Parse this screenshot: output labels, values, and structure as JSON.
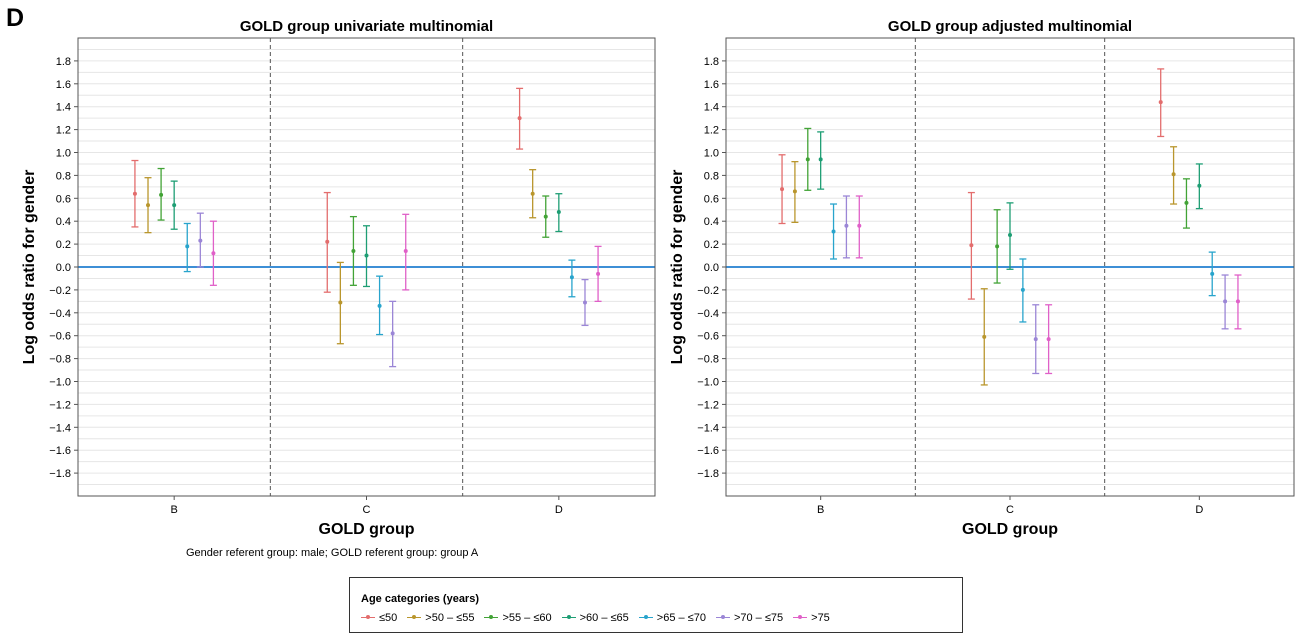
{
  "panel_letter": "D",
  "footnote": "Gender referent group: male; GOLD referent group: group A",
  "legend": {
    "title": "Age categories (years)",
    "items": [
      {
        "label": "≤50",
        "color": "#e36d6d"
      },
      {
        "label": ">50 – ≤55",
        "color": "#b9962d"
      },
      {
        "label": ">55 – ≤60",
        "color": "#42a336"
      },
      {
        "label": ">60 – ≤65",
        "color": "#1e9e74"
      },
      {
        "label": ">65 – ≤70",
        "color": "#28a4cc"
      },
      {
        "label": ">70 – ≤75",
        "color": "#9b86d6"
      },
      {
        "label": ">75",
        "color": "#e060c8"
      }
    ]
  },
  "chart_data": [
    {
      "type": "errorbar",
      "title": "GOLD group univariate multinomial",
      "xlabel": "GOLD group",
      "ylabel": "Log odds ratio for gender",
      "categories": [
        "B",
        "C",
        "D"
      ],
      "ylim": [
        -2.0,
        2.0
      ],
      "yticks": [
        "1.8",
        "1.6",
        "1.4",
        "1.2",
        "1.0",
        "0.8",
        "0.6",
        "0.4",
        "0.2",
        "0.0",
        "−0.2",
        "−0.4",
        "−0.6",
        "−0.8",
        "−1.0",
        "−1.2",
        "−1.4",
        "−1.6",
        "−1.8"
      ],
      "reference_line": 0,
      "grid": true,
      "series": [
        {
          "name": "≤50",
          "points": [
            {
              "est": 0.64,
              "lo": 0.35,
              "hi": 0.93
            },
            {
              "est": 0.22,
              "lo": -0.22,
              "hi": 0.65
            },
            {
              "est": 1.3,
              "lo": 1.03,
              "hi": 1.56
            }
          ]
        },
        {
          "name": ">50 – ≤55",
          "points": [
            {
              "est": 0.54,
              "lo": 0.3,
              "hi": 0.78
            },
            {
              "est": -0.31,
              "lo": -0.67,
              "hi": 0.04
            },
            {
              "est": 0.64,
              "lo": 0.43,
              "hi": 0.85
            }
          ]
        },
        {
          "name": ">55 – ≤60",
          "points": [
            {
              "est": 0.63,
              "lo": 0.41,
              "hi": 0.86
            },
            {
              "est": 0.14,
              "lo": -0.16,
              "hi": 0.44
            },
            {
              "est": 0.44,
              "lo": 0.26,
              "hi": 0.62
            }
          ]
        },
        {
          "name": ">60 – ≤65",
          "points": [
            {
              "est": 0.54,
              "lo": 0.33,
              "hi": 0.75
            },
            {
              "est": 0.1,
              "lo": -0.17,
              "hi": 0.36
            },
            {
              "est": 0.48,
              "lo": 0.31,
              "hi": 0.64
            }
          ]
        },
        {
          "name": ">65 – ≤70",
          "points": [
            {
              "est": 0.18,
              "lo": -0.04,
              "hi": 0.38
            },
            {
              "est": -0.34,
              "lo": -0.59,
              "hi": -0.08
            },
            {
              "est": -0.09,
              "lo": -0.26,
              "hi": 0.06
            }
          ]
        },
        {
          "name": ">70 – ≤75",
          "points": [
            {
              "est": 0.23,
              "lo": 0.0,
              "hi": 0.47
            },
            {
              "est": -0.58,
              "lo": -0.87,
              "hi": -0.3
            },
            {
              "est": -0.31,
              "lo": -0.51,
              "hi": -0.11
            }
          ]
        },
        {
          "name": ">75",
          "points": [
            {
              "est": 0.12,
              "lo": -0.16,
              "hi": 0.4
            },
            {
              "est": 0.14,
              "lo": -0.2,
              "hi": 0.46
            },
            {
              "est": -0.06,
              "lo": -0.3,
              "hi": 0.18
            }
          ]
        }
      ]
    },
    {
      "type": "errorbar",
      "title": "GOLD group adjusted multinomial",
      "xlabel": "GOLD group",
      "ylabel": "Log odds ratio for gender",
      "categories": [
        "B",
        "C",
        "D"
      ],
      "ylim": [
        -2.0,
        2.0
      ],
      "yticks": [
        "1.8",
        "1.6",
        "1.4",
        "1.2",
        "1.0",
        "0.8",
        "0.6",
        "0.4",
        "0.2",
        "0.0",
        "−0.2",
        "−0.4",
        "−0.6",
        "−0.8",
        "−1.0",
        "−1.2",
        "−1.4",
        "−1.6",
        "−1.8"
      ],
      "reference_line": 0,
      "grid": true,
      "series": [
        {
          "name": "≤50",
          "points": [
            {
              "est": 0.68,
              "lo": 0.38,
              "hi": 0.98
            },
            {
              "est": 0.19,
              "lo": -0.28,
              "hi": 0.65
            },
            {
              "est": 1.44,
              "lo": 1.14,
              "hi": 1.73
            }
          ]
        },
        {
          "name": ">50 – ≤55",
          "points": [
            {
              "est": 0.66,
              "lo": 0.39,
              "hi": 0.92
            },
            {
              "est": -0.61,
              "lo": -1.03,
              "hi": -0.19
            },
            {
              "est": 0.81,
              "lo": 0.55,
              "hi": 1.05
            }
          ]
        },
        {
          "name": ">55 – ≤60",
          "points": [
            {
              "est": 0.94,
              "lo": 0.67,
              "hi": 1.21
            },
            {
              "est": 0.18,
              "lo": -0.14,
              "hi": 0.5
            },
            {
              "est": 0.56,
              "lo": 0.34,
              "hi": 0.77
            }
          ]
        },
        {
          "name": ">60 – ≤65",
          "points": [
            {
              "est": 0.94,
              "lo": 0.68,
              "hi": 1.18
            },
            {
              "est": 0.28,
              "lo": -0.02,
              "hi": 0.56
            },
            {
              "est": 0.71,
              "lo": 0.51,
              "hi": 0.9
            }
          ]
        },
        {
          "name": ">65 – ≤70",
          "points": [
            {
              "est": 0.31,
              "lo": 0.07,
              "hi": 0.55
            },
            {
              "est": -0.2,
              "lo": -0.48,
              "hi": 0.07
            },
            {
              "est": -0.06,
              "lo": -0.25,
              "hi": 0.13
            }
          ]
        },
        {
          "name": ">70 – ≤75",
          "points": [
            {
              "est": 0.36,
              "lo": 0.08,
              "hi": 0.62
            },
            {
              "est": -0.63,
              "lo": -0.93,
              "hi": -0.33
            },
            {
              "est": -0.3,
              "lo": -0.54,
              "hi": -0.07
            }
          ]
        },
        {
          "name": ">75",
          "points": [
            {
              "est": 0.36,
              "lo": 0.08,
              "hi": 0.62
            },
            {
              "est": -0.63,
              "lo": -0.93,
              "hi": -0.33
            },
            {
              "est": -0.3,
              "lo": -0.54,
              "hi": -0.07
            }
          ]
        }
      ]
    }
  ]
}
